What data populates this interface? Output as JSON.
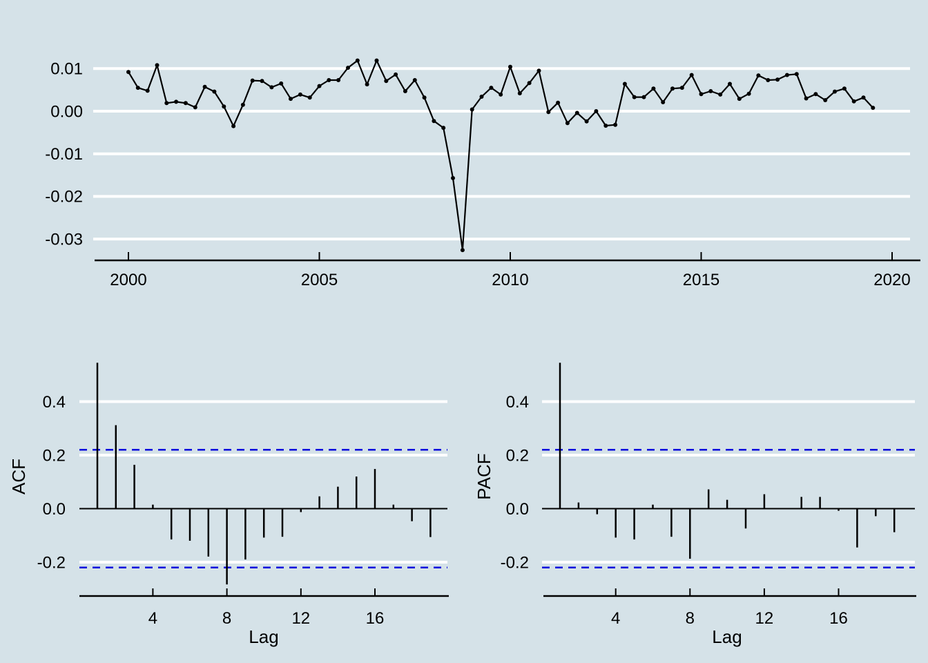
{
  "figure": {
    "description": "Time series plot with ACF and PACF correlograms",
    "background_color": "#d5e2e8",
    "gridline_color": "#ffffff",
    "series_color": "#000000",
    "axis_color": "#000000",
    "ci_line_color": "#0000dd",
    "text_color": "#000000"
  },
  "chart_data": [
    {
      "id": "timeseries",
      "type": "line",
      "title": "",
      "xlabel": "",
      "ylabel": "",
      "marker": "filled-circle",
      "grid": "horizontal-white",
      "x_start": 2000,
      "x_step": 0.25,
      "n_points": 79,
      "values": [
        0.0092,
        0.0055,
        0.0048,
        0.0108,
        0.0019,
        0.0022,
        0.0019,
        0.0009,
        0.0057,
        0.0046,
        0.0011,
        -0.0035,
        0.0015,
        0.0072,
        0.0071,
        0.0056,
        0.0065,
        0.0029,
        0.0039,
        0.0032,
        0.0059,
        0.0073,
        0.0073,
        0.0102,
        0.0119,
        0.0063,
        0.0119,
        0.0071,
        0.0086,
        0.0047,
        0.0073,
        0.0032,
        -0.0023,
        -0.0039,
        -0.0157,
        -0.0326,
        0.0004,
        0.0034,
        0.0055,
        0.0039,
        0.0104,
        0.0042,
        0.0066,
        0.0095,
        -0.0002,
        0.002,
        -0.0028,
        -0.0004,
        -0.0024,
        0.0,
        -0.0034,
        -0.0032,
        0.0064,
        0.0033,
        0.0033,
        0.0053,
        0.0021,
        0.0053,
        0.0055,
        0.0085,
        0.004,
        0.0047,
        0.0039,
        0.0064,
        0.0029,
        0.0041,
        0.0084,
        0.0073,
        0.0074,
        0.0085,
        0.0087,
        0.003,
        0.004,
        0.0026,
        0.0046,
        0.0053,
        0.0023,
        0.0032,
        0.0008
      ],
      "xticks": [
        {
          "v": 2000,
          "label": "2000"
        },
        {
          "v": 2005,
          "label": "2005"
        },
        {
          "v": 2010,
          "label": "2010"
        },
        {
          "v": 2015,
          "label": "2015"
        },
        {
          "v": 2020,
          "label": "2020"
        }
      ],
      "yticks": [
        {
          "v": 0.01,
          "label": "0.01"
        },
        {
          "v": 0.0,
          "label": "0.00"
        },
        {
          "v": -0.01,
          "label": "-0.01"
        },
        {
          "v": -0.02,
          "label": "-0.02"
        },
        {
          "v": -0.03,
          "label": "-0.03"
        }
      ],
      "xlim": [
        1999.1,
        2020.5
      ],
      "ylim": [
        -0.035,
        0.013
      ]
    },
    {
      "id": "acf",
      "type": "bar",
      "subtype": "correlogram-sticks",
      "title": "",
      "xlabel": "Lag",
      "ylabel": "ACF",
      "conf_bound": 0.22,
      "conf_style": "dashed-blue",
      "lags": [
        1,
        2,
        3,
        4,
        5,
        6,
        7,
        8,
        9,
        10,
        11,
        12,
        13,
        14,
        15,
        16,
        17,
        18,
        19
      ],
      "values": [
        0.545,
        0.312,
        0.164,
        0.015,
        -0.115,
        -0.12,
        -0.179,
        -0.283,
        -0.19,
        -0.108,
        -0.105,
        -0.013,
        0.046,
        0.082,
        0.12,
        0.148,
        0.015,
        -0.047,
        -0.106
      ],
      "xticks": [
        {
          "v": 4,
          "label": "4"
        },
        {
          "v": 8,
          "label": "8"
        },
        {
          "v": 12,
          "label": "12"
        },
        {
          "v": 16,
          "label": "16"
        }
      ],
      "yticks": [
        {
          "v": 0.4,
          "label": "0.4"
        },
        {
          "v": 0.2,
          "label": "0.2"
        },
        {
          "v": 0.0,
          "label": "0.0"
        },
        {
          "v": -0.2,
          "label": "-0.2"
        }
      ],
      "ylim": [
        -0.33,
        0.56
      ]
    },
    {
      "id": "pacf",
      "type": "bar",
      "subtype": "correlogram-sticks",
      "title": "",
      "xlabel": "Lag",
      "ylabel": "PACF",
      "conf_bound": 0.22,
      "conf_style": "dashed-blue",
      "lags": [
        1,
        2,
        3,
        4,
        5,
        6,
        7,
        8,
        9,
        10,
        11,
        12,
        13,
        14,
        15,
        16,
        17,
        18,
        19
      ],
      "values": [
        0.545,
        0.023,
        -0.021,
        -0.108,
        -0.115,
        0.015,
        -0.105,
        -0.187,
        0.072,
        0.033,
        -0.074,
        0.054,
        0.0,
        0.044,
        0.044,
        -0.008,
        -0.145,
        -0.028,
        -0.088
      ],
      "xticks": [
        {
          "v": 4,
          "label": "4"
        },
        {
          "v": 8,
          "label": "8"
        },
        {
          "v": 12,
          "label": "12"
        },
        {
          "v": 16,
          "label": "16"
        }
      ],
      "yticks": [
        {
          "v": 0.4,
          "label": "0.4"
        },
        {
          "v": 0.2,
          "label": "0.2"
        },
        {
          "v": 0.0,
          "label": "0.0"
        },
        {
          "v": -0.2,
          "label": "-0.2"
        }
      ],
      "ylim": [
        -0.33,
        0.56
      ]
    }
  ]
}
